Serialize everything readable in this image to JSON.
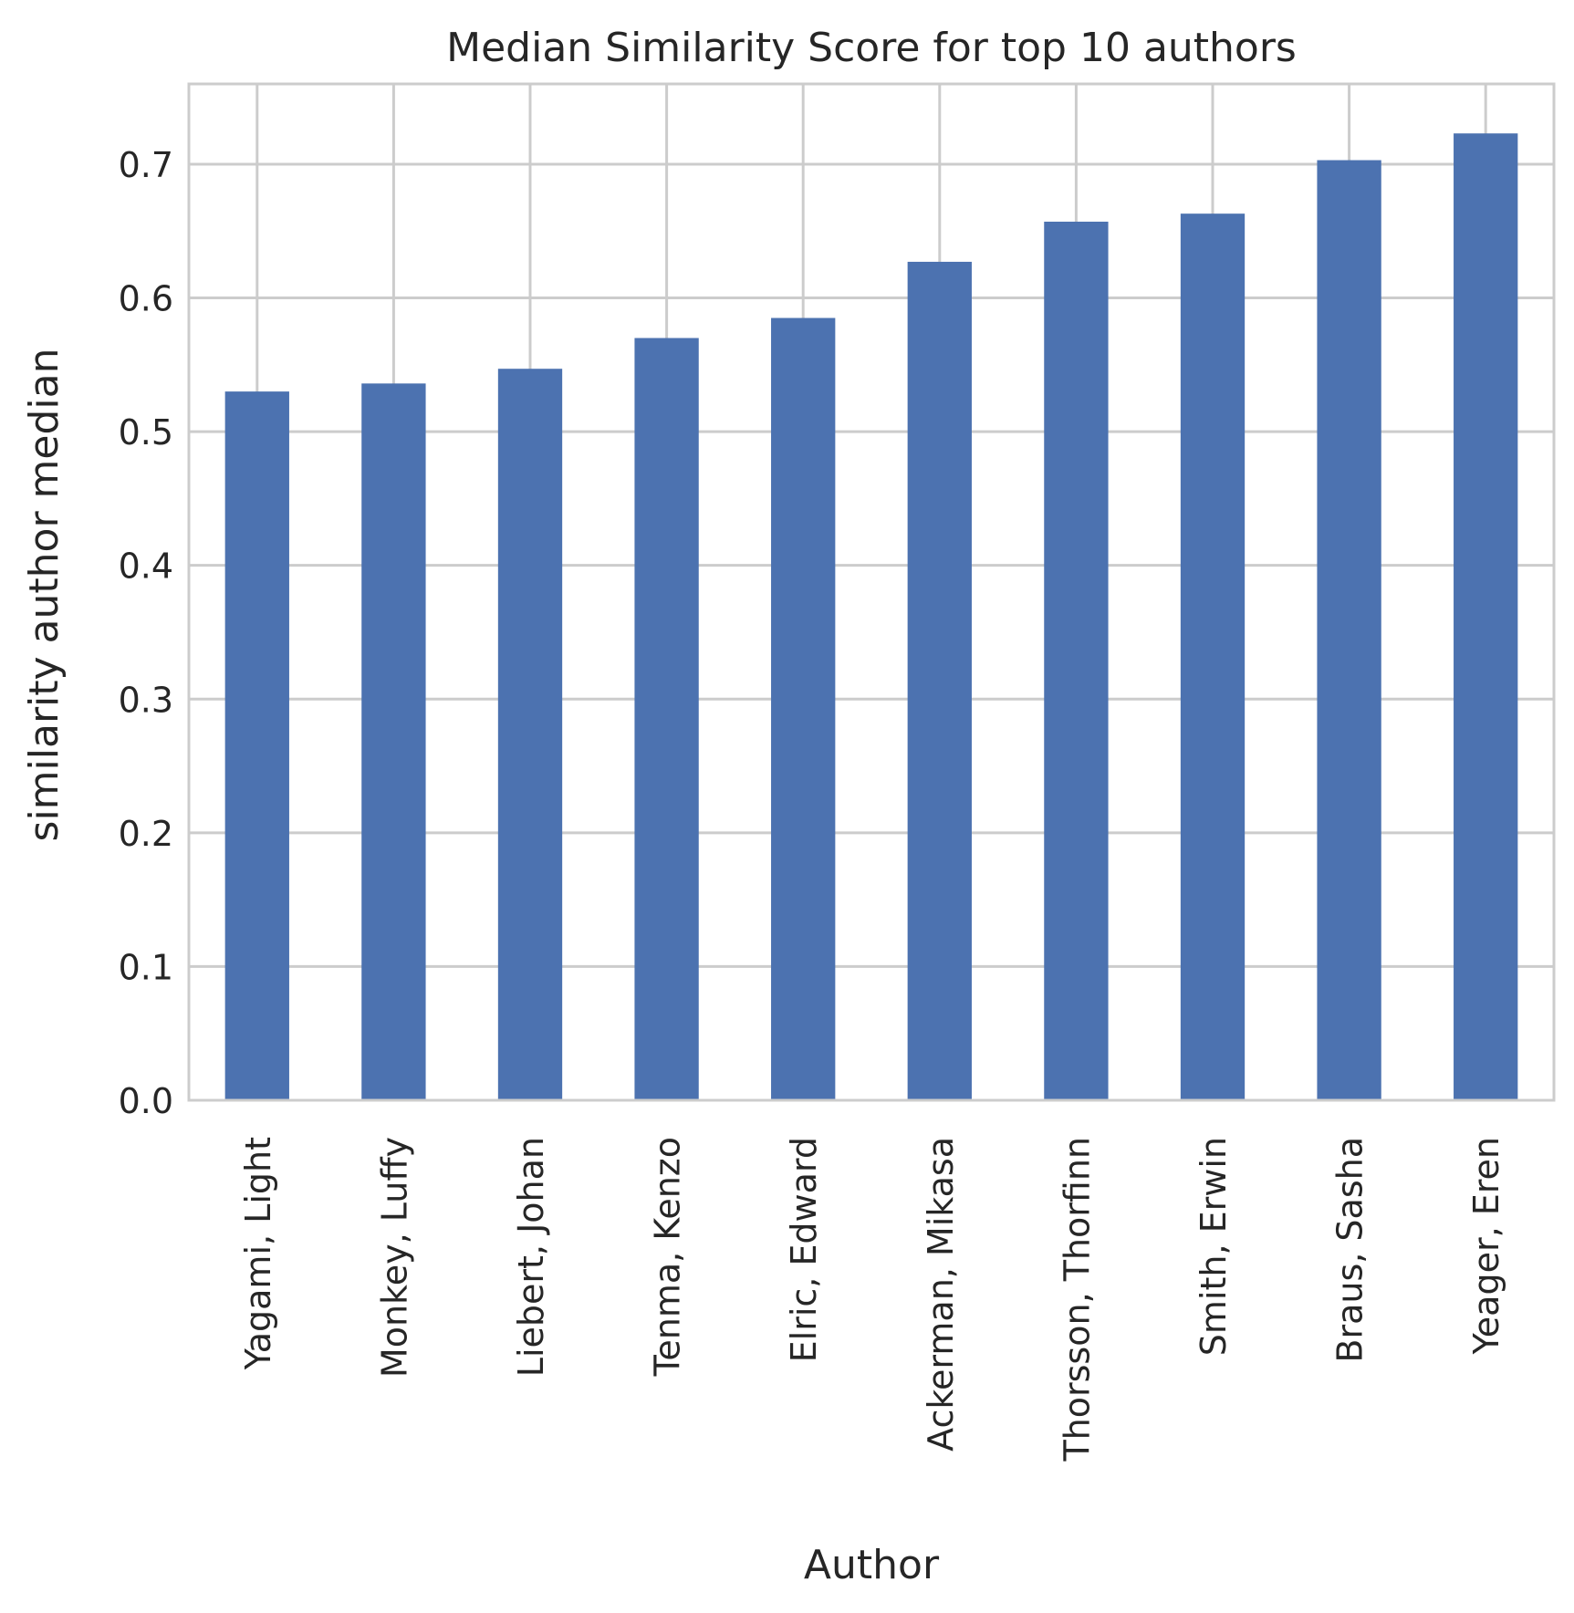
{
  "chart_data": {
    "type": "bar",
    "title": "Median Similarity Score for top 10 authors",
    "xlabel": "Author",
    "ylabel": "similarity author median",
    "categories": [
      "Yagami, Light",
      "Monkey, Luffy",
      "Liebert, Johan",
      "Tenma, Kenzo",
      "Elric, Edward",
      "Ackerman, Mikasa",
      "Thorsson, Thorfinn",
      "Smith, Erwin",
      "Braus, Sasha",
      "Yeager, Eren"
    ],
    "values": [
      0.53,
      0.536,
      0.547,
      0.57,
      0.585,
      0.627,
      0.657,
      0.663,
      0.703,
      0.723
    ],
    "ylim": [
      0,
      0.76
    ],
    "yticks": [
      0.0,
      0.1,
      0.2,
      0.3,
      0.4,
      0.5,
      0.6,
      0.7
    ],
    "ytick_labels": [
      "0.0",
      "0.1",
      "0.2",
      "0.3",
      "0.4",
      "0.5",
      "0.6",
      "0.7"
    ],
    "grid": true,
    "legend": "none",
    "colors": {
      "bar": "#4c72b0",
      "grid": "#cccccc",
      "spine": "#cccccc",
      "text": "#262626",
      "background": "#ffffff"
    }
  }
}
